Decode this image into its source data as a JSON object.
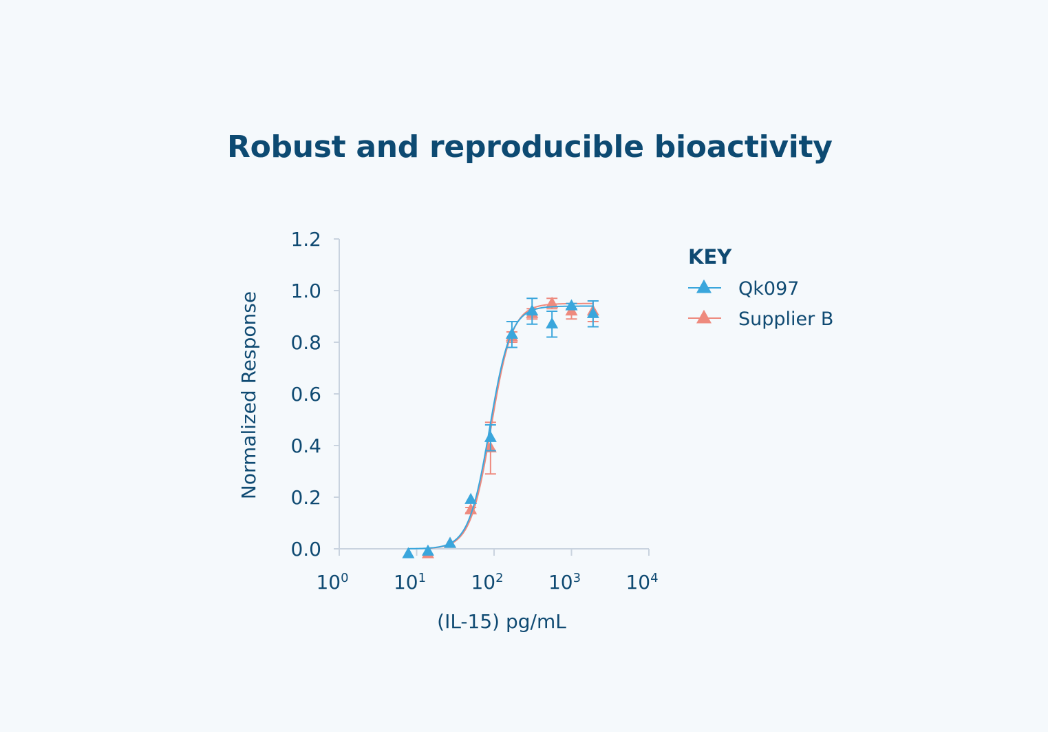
{
  "title": "Robust and reproducible bioactivity",
  "legend_title": "KEY",
  "colors": {
    "qk097": "#3aa6dc",
    "supplier_b": "#ee8a7e",
    "axis": "#c9d3df",
    "text": "#0f4a72"
  },
  "chart_data": {
    "type": "scatter",
    "title": "Robust and reproducible bioactivity",
    "xlabel": "(IL-15) pg/mL",
    "ylabel": "Normalized Response",
    "xscale": "log",
    "xlim": [
      1,
      10000
    ],
    "ylim": [
      0,
      1.2
    ],
    "x_ticks": [
      {
        "value": 1,
        "base": "10",
        "exp": "0"
      },
      {
        "value": 10,
        "base": "10",
        "exp": "1"
      },
      {
        "value": 100,
        "base": "10",
        "exp": "2"
      },
      {
        "value": 1000,
        "base": "10",
        "exp": "3"
      },
      {
        "value": 10000,
        "base": "10",
        "exp": "4"
      }
    ],
    "y_ticks": [
      "0.0",
      "0.2",
      "0.4",
      "0.6",
      "0.8",
      "1.0",
      "1.2"
    ],
    "legend_position": "right",
    "series": [
      {
        "name": "Qk097",
        "color": "#3aa6dc",
        "marker": "triangle",
        "x": [
          7.8,
          14,
          27,
          50,
          90,
          170,
          310,
          560,
          1000,
          1900
        ],
        "y": [
          -0.02,
          -0.01,
          0.02,
          0.19,
          0.43,
          0.83,
          0.92,
          0.87,
          0.94,
          0.91
        ],
        "err": [
          0,
          0,
          0,
          0,
          0.05,
          0.05,
          0.05,
          0.05,
          0.01,
          0.05
        ],
        "fit": {
          "bottom": 0.0,
          "top": 0.94,
          "ec50": 88,
          "hill": 3.2
        }
      },
      {
        "name": "Supplier B",
        "color": "#ee8a7e",
        "marker": "triangle",
        "x": [
          14,
          27,
          50,
          90,
          170,
          310,
          560,
          1000,
          1900
        ],
        "y": [
          -0.02,
          0.02,
          0.15,
          0.39,
          0.82,
          0.91,
          0.95,
          0.92,
          0.92
        ],
        "err": [
          0,
          0,
          0.01,
          0.1,
          0.02,
          0.02,
          0.02,
          0.03,
          0.04
        ],
        "fit": {
          "bottom": 0.0,
          "top": 0.95,
          "ec50": 92,
          "hill": 3.2
        }
      }
    ]
  }
}
